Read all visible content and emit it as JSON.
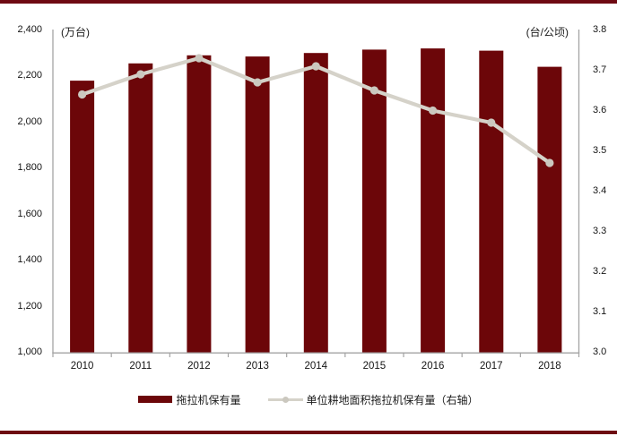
{
  "chart_data": {
    "type": "bar+line-combo",
    "categories": [
      "2010",
      "2011",
      "2012",
      "2013",
      "2014",
      "2015",
      "2016",
      "2017",
      "2018"
    ],
    "series": [
      {
        "name": "拖拉机保有量",
        "type": "bar",
        "axis": "left",
        "color": "#6c0609",
        "values": [
          2180,
          2255,
          2290,
          2285,
          2300,
          2315,
          2320,
          2310,
          2240
        ]
      },
      {
        "name": "单位耕地面积拖拉机保有量（右轴）",
        "type": "line",
        "axis": "right",
        "color": "#d5d2c9",
        "marker_color": "#cbc8bf",
        "values": [
          3.64,
          3.69,
          3.73,
          3.67,
          3.71,
          3.65,
          3.6,
          3.57,
          3.47
        ]
      }
    ],
    "left_axis": {
      "label": "(万台)",
      "min": 1000,
      "max": 2400,
      "step": 200,
      "tick_labels": [
        "2,400",
        "2,200",
        "2,000",
        "1,800",
        "1,600",
        "1,400",
        "1,200",
        "1,000"
      ]
    },
    "right_axis": {
      "label": "(台/公顷)",
      "min": 3.0,
      "max": 3.8,
      "step": 0.1,
      "tick_labels": [
        "3.8",
        "3.7",
        "3.6",
        "3.5",
        "3.4",
        "3.3",
        "3.2",
        "3.1",
        "3.0"
      ]
    },
    "grid": false,
    "legend_position": "bottom",
    "axis_line_color": "#a3a3a3",
    "accent_color": "#6e0a12"
  },
  "legend": {
    "items": [
      {
        "label": "拖拉机保有量",
        "swatch": "bar"
      },
      {
        "label": "单位耕地面积拖拉机保有量（右轴）",
        "swatch": "line"
      }
    ]
  }
}
